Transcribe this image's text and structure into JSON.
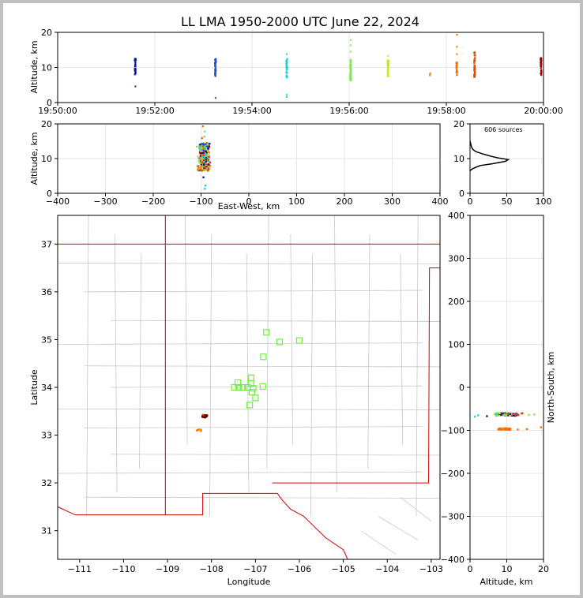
{
  "title": "LL LMA 1950-2000 UTC June 22, 2024",
  "chart_data": [
    {
      "id": "time_altitude",
      "type": "scatter",
      "ylabel": "Altitude, km",
      "xlim": [
        "19:50:00",
        "20:00:00"
      ],
      "ylim": [
        0,
        20
      ],
      "xticks": [
        "19:50:00",
        "19:52:00",
        "19:54:00",
        "19:56:00",
        "19:58:00",
        "20:00:00"
      ],
      "yticks": [
        0,
        10,
        20
      ],
      "grid": true,
      "flashes": [
        {
          "t": "19:51:36",
          "alt_min": 8,
          "alt_max": 12.5,
          "extra": [
            4.6
          ],
          "color": "#0a1a8a"
        },
        {
          "t": "19:53:15",
          "alt_min": 7.5,
          "alt_max": 12.8,
          "extra": [
            1.3
          ],
          "color": "#1a4fe0"
        },
        {
          "t": "19:54:43",
          "alt_min": 7,
          "alt_max": 12.5,
          "extra": [
            13.8,
            2.2,
            1.6
          ],
          "color": "#16d6d6"
        },
        {
          "t": "19:56:02",
          "alt_min": 6.3,
          "alt_max": 12.5,
          "extra": [
            14.5,
            16.3,
            17.8
          ],
          "color": "#7fe85a"
        },
        {
          "t": "19:56:48",
          "alt_min": 7.3,
          "alt_max": 12.3,
          "extra": [
            13.3
          ],
          "color": "#c8e61c"
        },
        {
          "t": "19:57:40",
          "alt_min": 7.7,
          "alt_max": 8.4,
          "extra": [],
          "color": "#f0a020"
        },
        {
          "t": "19:58:13",
          "alt_min": 7.8,
          "alt_max": 11.5,
          "extra": [
            13.8,
            15.9,
            19.3
          ],
          "color": "#ff6a00"
        },
        {
          "t": "19:58:35",
          "alt_min": 7.3,
          "alt_max": 14.5,
          "extra": [],
          "color": "#e04a00"
        },
        {
          "t": "19:59:57",
          "alt_min": 7.8,
          "alt_max": 12.8,
          "extra": [],
          "color": "#a00000"
        }
      ]
    },
    {
      "id": "ew_altitude",
      "type": "scatter",
      "xlabel": "East-West, km",
      "ylabel": "Altitude, km",
      "xlim": [
        -400,
        400
      ],
      "ylim": [
        0,
        20
      ],
      "xticks": [
        -400,
        -300,
        -200,
        -100,
        0,
        100,
        200,
        300,
        400
      ],
      "yticks": [
        0,
        10,
        20
      ],
      "grid": true
    },
    {
      "id": "altitude_histogram",
      "type": "line",
      "annotation": "606 sources",
      "xlim": [
        0,
        100
      ],
      "ylim": [
        0,
        20
      ],
      "xticks": [
        0,
        50,
        100
      ],
      "yticks": [
        0,
        10,
        20
      ],
      "grid": true,
      "profile": [
        [
          0,
          6.5
        ],
        [
          3,
          7
        ],
        [
          8,
          7.5
        ],
        [
          14,
          8
        ],
        [
          30,
          8.5
        ],
        [
          48,
          9.2
        ],
        [
          52,
          9.7
        ],
        [
          38,
          10.2
        ],
        [
          28,
          10.7
        ],
        [
          18,
          11.3
        ],
        [
          8,
          12
        ],
        [
          4,
          12.6
        ],
        [
          2,
          13.3
        ],
        [
          1,
          14.2
        ],
        [
          0,
          15
        ]
      ]
    },
    {
      "id": "plan_map",
      "type": "scatter",
      "xlabel": "Longitude",
      "ylabel": "Latitude",
      "xlim": [
        -111.5,
        -102.8
      ],
      "ylim": [
        30.4,
        37.6
      ],
      "xticks": [
        -111,
        -110,
        -109,
        -108,
        -107,
        -106,
        -105,
        -104,
        -103
      ],
      "yticks": [
        31,
        32,
        33,
        34,
        35,
        36,
        37
      ],
      "stations": [
        [
          -106.75,
          35.15
        ],
        [
          -106.45,
          34.95
        ],
        [
          -106.0,
          34.98
        ],
        [
          -106.82,
          34.64
        ],
        [
          -107.1,
          34.2
        ],
        [
          -107.4,
          34.1
        ],
        [
          -107.1,
          34.08
        ],
        [
          -107.48,
          34.0
        ],
        [
          -107.38,
          34.0
        ],
        [
          -107.28,
          34.0
        ],
        [
          -107.18,
          34.0
        ],
        [
          -107.05,
          33.98
        ],
        [
          -106.83,
          34.02
        ],
        [
          -107.08,
          33.9
        ],
        [
          -107.0,
          33.78
        ],
        [
          -107.13,
          33.63
        ]
      ],
      "source_clusters": [
        {
          "lon": -108.15,
          "lat": 33.4,
          "spread": 0.06,
          "count": 30,
          "colors": [
            "#a00000",
            "#5a0000",
            "#e04a00",
            "#000000"
          ]
        },
        {
          "lon": -108.28,
          "lat": 33.1,
          "spread": 0.05,
          "count": 10,
          "colors": [
            "#ff6a00",
            "#f0a020"
          ]
        }
      ]
    },
    {
      "id": "altitude_ns",
      "type": "scatter",
      "xlabel": "Altitude, km",
      "ylabel": "North-South, km",
      "xlim": [
        0,
        20
      ],
      "ylim": [
        -400,
        400
      ],
      "xticks": [
        0,
        10,
        20
      ],
      "yticks": [
        -400,
        -300,
        -200,
        -100,
        0,
        100,
        200,
        300,
        400
      ],
      "grid": true,
      "ns_clusters": [
        {
          "ns": -63,
          "alt_min": 6.5,
          "alt_max": 14.5
        },
        {
          "ns": -97,
          "alt_min": 7.3,
          "alt_max": 19.3
        }
      ]
    }
  ]
}
